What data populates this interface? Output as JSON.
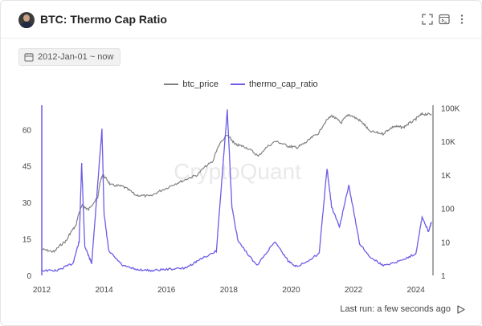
{
  "header": {
    "title": "BTC: Thermo Cap Ratio",
    "icons": [
      "avatar",
      "fullscreen-icon",
      "terminal-icon",
      "more-vertical-icon"
    ]
  },
  "filter": {
    "date_range": "2012-Jan-01 ~ now"
  },
  "watermark": "CryptoQuant",
  "footer": {
    "last_run": "Last run: a few seconds ago"
  },
  "colors": {
    "btc_price": "#808080",
    "thermo_cap_ratio": "#6c5ce7"
  },
  "chart_data": {
    "type": "line",
    "legend": [
      "btc_price",
      "thermo_cap_ratio"
    ],
    "x_ticks": [
      "2012",
      "2014",
      "2016",
      "2018",
      "2020",
      "2022",
      "2024"
    ],
    "y_left_ticks": [
      "0",
      "15",
      "30",
      "45",
      "60"
    ],
    "y_right_ticks": [
      "1",
      "10",
      "100",
      "1K",
      "10K",
      "100K"
    ],
    "y_left_lim": [
      0,
      70
    ],
    "y_right_lim": [
      1,
      120000
    ],
    "y_right_scale": "log",
    "series": [
      {
        "name": "btc_price",
        "axis": "right",
        "x": [
          2012.0,
          2012.4,
          2012.8,
          2013.1,
          2013.3,
          2013.5,
          2013.8,
          2013.95,
          2014.2,
          2014.6,
          2015.0,
          2015.5,
          2016.0,
          2016.5,
          2017.0,
          2017.5,
          2017.95,
          2018.2,
          2018.5,
          2018.95,
          2019.5,
          2019.9,
          2020.2,
          2020.5,
          2020.9,
          2021.3,
          2021.6,
          2021.85,
          2022.2,
          2022.5,
          2022.95,
          2023.3,
          2023.6,
          2023.95,
          2024.2,
          2024.5
        ],
        "values": [
          6,
          5,
          11,
          30,
          120,
          90,
          200,
          1000,
          500,
          450,
          250,
          230,
          400,
          650,
          1000,
          2500,
          15000,
          8000,
          7000,
          3500,
          10000,
          7200,
          6500,
          9500,
          18000,
          58000,
          35000,
          63000,
          42000,
          20000,
          16800,
          28000,
          26000,
          42000,
          65000,
          64000
        ]
      },
      {
        "name": "thermo_cap_ratio",
        "axis": "left",
        "x": [
          2012.0,
          2012.5,
          2013.0,
          2013.2,
          2013.28,
          2013.38,
          2013.6,
          2013.93,
          2014.0,
          2014.15,
          2014.6,
          2015.0,
          2015.5,
          2016.0,
          2016.6,
          2017.0,
          2017.6,
          2017.95,
          2018.1,
          2018.3,
          2018.9,
          2019.48,
          2019.9,
          2020.2,
          2020.9,
          2021.15,
          2021.3,
          2021.55,
          2021.85,
          2022.2,
          2022.5,
          2022.95,
          2023.5,
          2024.0,
          2024.2,
          2024.4,
          2024.5
        ],
        "values": [
          2,
          2,
          5,
          14,
          46,
          12,
          5,
          60,
          25,
          10,
          4,
          2.5,
          2,
          2.5,
          3,
          6,
          10,
          68,
          28,
          14,
          4,
          14,
          6,
          3.5,
          9,
          44,
          28,
          20,
          37,
          13,
          8,
          4,
          6,
          9,
          24,
          18,
          22
        ]
      }
    ]
  }
}
